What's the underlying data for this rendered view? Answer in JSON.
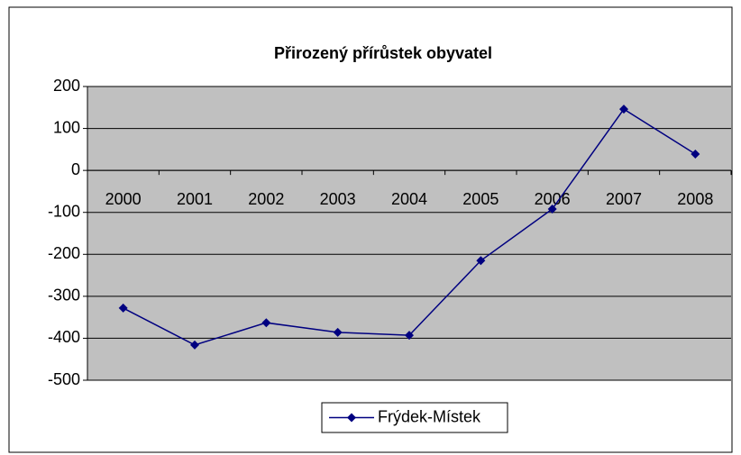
{
  "chart_data": {
    "type": "line",
    "title": "Přirozený přírůstek obyvatel",
    "categories": [
      "2000",
      "2001",
      "2002",
      "2003",
      "2004",
      "2005",
      "2006",
      "2007",
      "2008"
    ],
    "series": [
      {
        "name": "Frýdek-Místek",
        "color": "#000080",
        "values": [
          -328,
          -416,
          -363,
          -386,
          -393,
          -215,
          -92,
          146,
          39
        ]
      }
    ],
    "ylim": [
      -500,
      200
    ],
    "yticks": [
      -500,
      -400,
      -300,
      -200,
      -100,
      0,
      100,
      200
    ],
    "grid": true,
    "legend": "bottom"
  }
}
